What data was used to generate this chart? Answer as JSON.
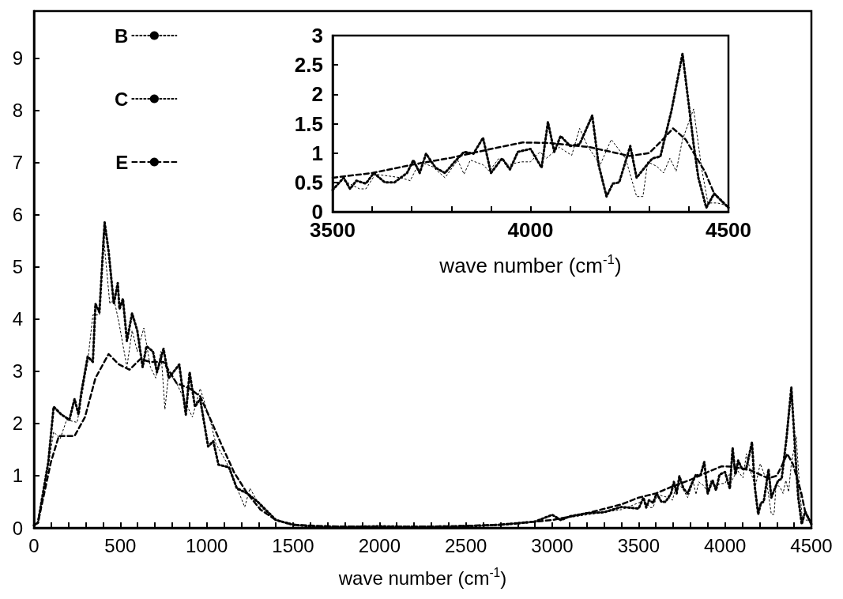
{
  "chart_data": [
    {
      "type": "line",
      "xlabel": "wave number (cm$^{-1}$)",
      "xlim": [
        0,
        4500
      ],
      "ylim": [
        0,
        9.9
      ],
      "xticks": [
        0,
        {
          "value": 100,
          "label": null
        },
        {
          "value": 200,
          "label": null
        },
        {
          "value": 300,
          "label": null
        },
        {
          "value": 400,
          "label": null
        },
        500,
        {
          "value": 600,
          "label": null
        },
        {
          "value": 700,
          "label": null
        },
        {
          "value": 800,
          "label": null
        },
        {
          "value": 900,
          "label": null
        },
        1000,
        {
          "value": 1100,
          "label": null
        },
        {
          "value": 1200,
          "label": null
        },
        {
          "value": 1300,
          "label": null
        },
        {
          "value": 1400,
          "label": null
        },
        1500,
        {
          "value": 1600,
          "label": null
        },
        {
          "value": 1700,
          "label": null
        },
        {
          "value": 1800,
          "label": null
        },
        {
          "value": 1900,
          "label": null
        },
        2000,
        {
          "value": 2100,
          "label": null
        },
        {
          "value": 2200,
          "label": null
        },
        {
          "value": 2300,
          "label": null
        },
        {
          "value": 2400,
          "label": null
        },
        2500,
        {
          "value": 2600,
          "label": null
        },
        {
          "value": 2700,
          "label": null
        },
        {
          "value": 2800,
          "label": null
        },
        {
          "value": 2900,
          "label": null
        },
        3000,
        {
          "value": 3100,
          "label": null
        },
        {
          "value": 3200,
          "label": null
        },
        {
          "value": 3300,
          "label": null
        },
        {
          "value": 3400,
          "label": null
        },
        3500,
        {
          "value": 3600,
          "label": null
        },
        {
          "value": 3700,
          "label": null
        },
        {
          "value": 3800,
          "label": null
        },
        {
          "value": 3900,
          "label": null
        },
        4000,
        {
          "value": 4100,
          "label": null
        },
        {
          "value": 4200,
          "label": null
        },
        {
          "value": 4300,
          "label": null
        },
        {
          "value": 4400,
          "label": null
        },
        4500
      ],
      "yticks": [
        0,
        1,
        2,
        3,
        4,
        5,
        6,
        7,
        8,
        9
      ],
      "legend": "top left",
      "grid": false,
      "series": [
        {
          "name": "B",
          "color": "#000000",
          "line_style": "dotted",
          "x": [
            0,
            23,
            83,
            114,
            159,
            205,
            235,
            258,
            273,
            311,
            341,
            356,
            379,
            409,
            432,
            462,
            485,
            495,
            515,
            538,
            568,
            598,
            629,
            651,
            689,
            712,
            750,
            780,
            841,
            879,
            901,
            932,
            962,
            1008,
            1038,
            1068,
            1129,
            1174,
            1235,
            1295,
            1401,
            1500,
            1600,
            1800,
            2000,
            2200,
            2500,
            2700,
            2900,
            3000,
            3050,
            3100,
            3200,
            3300,
            3400,
            3500,
            3528,
            3544,
            3560,
            3584,
            3604,
            3632,
            3656,
            3688,
            3704,
            3720,
            3736,
            3760,
            3784,
            3808,
            3832,
            3856,
            3880,
            3900,
            3928,
            3948,
            3968,
            4000,
            4028,
            4044,
            4060,
            4076,
            4100,
            4124,
            4156,
            4172,
            4192,
            4208,
            4224,
            4252,
            4268,
            4288,
            4308,
            4328,
            4356,
            4384,
            4412,
            4424,
            4444,
            4464,
            4500
          ],
          "values": [
            0.05,
            0.1,
            1.26,
            2.32,
            2.17,
            2.07,
            2.47,
            2.17,
            2.57,
            3.28,
            3.18,
            4.29,
            4.13,
            5.85,
            5.3,
            4.29,
            4.69,
            4.19,
            4.39,
            3.58,
            4.11,
            3.78,
            3.08,
            3.48,
            3.38,
            2.98,
            3.43,
            2.87,
            3.13,
            2.17,
            2.98,
            2.32,
            2.47,
            1.56,
            1.66,
            1.21,
            1.16,
            0.76,
            0.66,
            0.5,
            0.15,
            0.06,
            0.03,
            0.02,
            0.03,
            0.02,
            0.03,
            0.06,
            0.12,
            0.25,
            0.15,
            0.22,
            0.28,
            0.3,
            0.4,
            0.37,
            0.58,
            0.39,
            0.53,
            0.48,
            0.66,
            0.5,
            0.5,
            0.66,
            0.88,
            0.66,
            0.99,
            0.75,
            0.66,
            0.85,
            1.02,
            0.99,
            1.26,
            0.66,
            0.91,
            0.72,
            1.02,
            1.07,
            0.75,
            1.53,
            1.02,
            1.29,
            1.12,
            1.15,
            1.64,
            0.8,
            0.26,
            0.48,
            0.5,
            1.12,
            0.58,
            0.75,
            0.91,
            0.94,
            1.72,
            2.69,
            1.15,
            0.58,
            0.07,
            0.31,
            0.07
          ]
        },
        {
          "name": "C",
          "color": "#000000",
          "line_style": "dotted",
          "x": [
            0,
            23,
            83,
            114,
            152,
            189,
            250,
            311,
            341,
            379,
            401,
            439,
            462,
            492,
            538,
            568,
            598,
            636,
            674,
            705,
            735,
            758,
            780,
            826,
            917,
            962,
            1023,
            1053,
            1114,
            1220,
            1250,
            1311,
            1401,
            1500,
            1700,
            2000,
            2300,
            2600,
            2800,
            3000,
            3200,
            3400,
            3500,
            3528,
            3568,
            3584,
            3608,
            3640,
            3672,
            3696,
            3720,
            3752,
            3784,
            3816,
            3832,
            3848,
            3880,
            3896,
            3920,
            3944,
            3976,
            4000,
            4024,
            4040,
            4072,
            4104,
            4124,
            4144,
            4176,
            4204,
            4240,
            4268,
            4284,
            4296,
            4320,
            4336,
            4352,
            4368,
            4384,
            4412,
            4432,
            4448,
            4472,
            4500
          ],
          "values": [
            0.05,
            0.1,
            1.2,
            1.84,
            1.71,
            2.07,
            2.02,
            3.18,
            4.08,
            4.08,
            5.65,
            4.29,
            4.4,
            3.93,
            3.08,
            3.78,
            3.38,
            3.83,
            3.08,
            2.87,
            3.38,
            2.27,
            2.98,
            2.77,
            2.12,
            2.67,
            2.02,
            1.61,
            1.26,
            0.4,
            0.76,
            0.4,
            0.15,
            0.05,
            0.02,
            0.02,
            0.03,
            0.04,
            0.07,
            0.15,
            0.25,
            0.35,
            0.48,
            0.53,
            0.39,
            0.39,
            0.64,
            0.61,
            0.58,
            0.53,
            0.85,
            0.77,
            0.58,
            0.88,
            0.64,
            0.88,
            0.8,
            0.69,
            0.91,
            0.8,
            0.85,
            0.85,
            1.02,
            0.91,
            1.1,
            0.96,
            1.42,
            1.12,
            0.8,
            1.23,
            0.91,
            0.26,
            0.26,
            0.85,
            0.77,
            0.66,
            0.91,
            0.69,
            1.23,
            1.75,
            0.75,
            0.15,
            0.15,
            0.1
          ]
        },
        {
          "name": "E",
          "color": "#000000",
          "line_style": "dashed",
          "x": [
            0,
            23,
            98,
            144,
            189,
            235,
            295,
            356,
            432,
            492,
            553,
            614,
            674,
            750,
            826,
            901,
            962,
            1023,
            1083,
            1159,
            1235,
            1311,
            1401,
            1500,
            1700,
            2000,
            2400,
            2700,
            3000,
            3200,
            3400,
            3500,
            3600,
            3700,
            3800,
            3900,
            3980,
            4050,
            4150,
            4250,
            4300,
            4330,
            4360,
            4392,
            4416,
            4440,
            4464,
            4500
          ],
          "values": [
            0.05,
            0.1,
            1.26,
            1.76,
            1.76,
            1.76,
            2.12,
            2.87,
            3.33,
            3.13,
            3.03,
            3.23,
            3.18,
            3.18,
            2.77,
            2.67,
            2.52,
            2.07,
            1.61,
            1.06,
            0.66,
            0.35,
            0.15,
            0.06,
            0.03,
            0.02,
            0.03,
            0.06,
            0.15,
            0.28,
            0.45,
            0.58,
            0.66,
            0.8,
            0.92,
            1.07,
            1.18,
            1.17,
            1.1,
            0.95,
            1.0,
            1.2,
            1.42,
            1.23,
            0.96,
            0.69,
            0.31,
            0.07
          ]
        }
      ]
    },
    {
      "type": "line",
      "xlabel": "wave number (cm$^{-1}$)",
      "xlim": [
        3500,
        4500
      ],
      "ylim": [
        0,
        3
      ],
      "xticks": [
        3500,
        {
          "value": 3600,
          "label": null
        },
        {
          "value": 3700,
          "label": null
        },
        {
          "value": 3800,
          "label": null
        },
        {
          "value": 3900,
          "label": null
        },
        4000,
        {
          "value": 4100,
          "label": null
        },
        {
          "value": 4200,
          "label": null
        },
        {
          "value": 4300,
          "label": null
        },
        {
          "value": 4400,
          "label": null
        },
        4500
      ],
      "yticks": [
        0,
        0.5,
        1,
        1.5,
        2,
        2.5,
        3
      ],
      "grid": false,
      "series": [
        {
          "color": "#000000",
          "line_style": "dotted",
          "x": [
            3500,
            3528,
            3544,
            3560,
            3584,
            3604,
            3632,
            3656,
            3688,
            3704,
            3720,
            3736,
            3760,
            3784,
            3808,
            3832,
            3856,
            3880,
            3900,
            3928,
            3948,
            3968,
            4000,
            4028,
            4044,
            4060,
            4076,
            4100,
            4124,
            4156,
            4172,
            4192,
            4208,
            4224,
            4252,
            4268,
            4288,
            4308,
            4328,
            4356,
            4384,
            4412,
            4424,
            4444,
            4464,
            4500
          ],
          "values": [
            0.37,
            0.58,
            0.39,
            0.53,
            0.48,
            0.66,
            0.5,
            0.5,
            0.66,
            0.88,
            0.66,
            0.99,
            0.75,
            0.66,
            0.85,
            1.02,
            0.99,
            1.26,
            0.66,
            0.91,
            0.72,
            1.02,
            1.07,
            0.75,
            1.53,
            1.02,
            1.29,
            1.12,
            1.15,
            1.64,
            0.8,
            0.26,
            0.48,
            0.5,
            1.12,
            0.58,
            0.75,
            0.91,
            0.94,
            1.72,
            2.69,
            1.15,
            0.58,
            0.07,
            0.31,
            0.07
          ]
        },
        {
          "color": "#000000",
          "line_style": "dotted",
          "x": [
            3500,
            3528,
            3568,
            3584,
            3608,
            3640,
            3672,
            3696,
            3720,
            3752,
            3784,
            3816,
            3832,
            3848,
            3880,
            3896,
            3920,
            3944,
            3976,
            4000,
            4024,
            4040,
            4072,
            4104,
            4124,
            4144,
            4176,
            4204,
            4240,
            4268,
            4284,
            4296,
            4320,
            4336,
            4352,
            4368,
            4384,
            4412,
            4432,
            4448,
            4472,
            4500
          ],
          "values": [
            0.48,
            0.53,
            0.39,
            0.39,
            0.64,
            0.61,
            0.58,
            0.53,
            0.85,
            0.77,
            0.58,
            0.88,
            0.64,
            0.88,
            0.8,
            0.69,
            0.91,
            0.8,
            0.85,
            0.85,
            1.02,
            0.91,
            1.1,
            0.96,
            1.42,
            1.12,
            0.8,
            1.23,
            0.91,
            0.26,
            0.26,
            0.85,
            0.77,
            0.66,
            0.91,
            0.69,
            1.23,
            1.75,
            0.75,
            0.15,
            0.15,
            0.1
          ]
        },
        {
          "color": "#000000",
          "line_style": "dashed",
          "x": [
            3500,
            3600,
            3700,
            3800,
            3900,
            3980,
            4050,
            4150,
            4250,
            4300,
            4330,
            4360,
            4392,
            4416,
            4440,
            4464,
            4500
          ],
          "values": [
            0.58,
            0.66,
            0.8,
            0.92,
            1.07,
            1.18,
            1.17,
            1.1,
            0.95,
            1.0,
            1.2,
            1.42,
            1.23,
            0.96,
            0.69,
            0.31,
            0.07
          ]
        }
      ]
    }
  ]
}
